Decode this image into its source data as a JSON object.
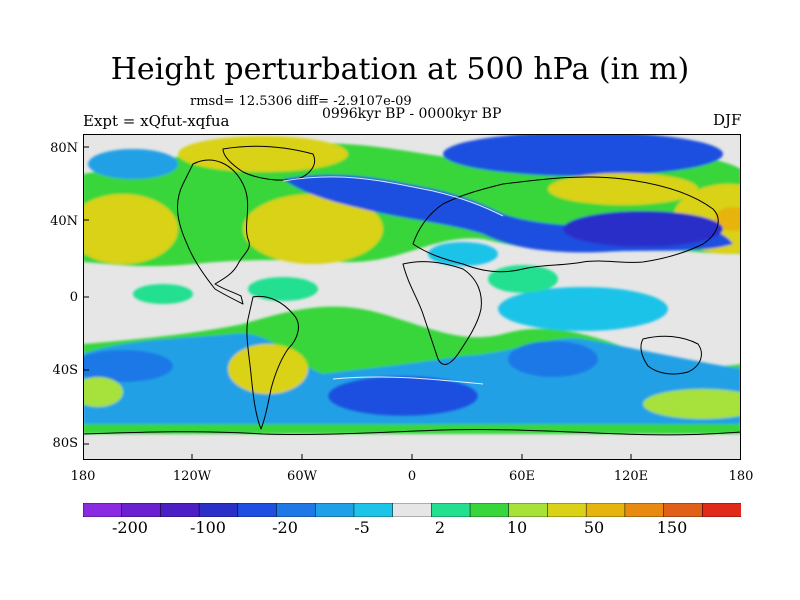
{
  "header": {
    "title": "Height perturbation at 500 hPa (in m)",
    "stats": "rmsd= 12.5306 diff= -2.9107e-09",
    "experiment": "Expt = xQfut-xqfua",
    "period": "0996kyr BP - 0000kyr BP",
    "season": "DJF"
  },
  "axes": {
    "lat_ticks": [
      "80N",
      "40N",
      "0",
      "40S",
      "80S"
    ],
    "lon_ticks": [
      "180",
      "120W",
      "60W",
      "0",
      "60E",
      "120E",
      "180"
    ]
  },
  "colorbar": {
    "colors": [
      "#8a2be2",
      "#6a1fd0",
      "#4b1fc4",
      "#2a2fc8",
      "#1f4fe0",
      "#1e78e6",
      "#20a0e6",
      "#1ec3e8",
      "#e6e6e6",
      "#22e090",
      "#38d63a",
      "#a6e23a",
      "#d9d217",
      "#e6b40f",
      "#e88a10",
      "#e0601a",
      "#e02a1a"
    ],
    "labels": [
      "-200",
      "-100",
      "-20",
      "-5",
      "2",
      "10",
      "50",
      "150"
    ]
  }
}
